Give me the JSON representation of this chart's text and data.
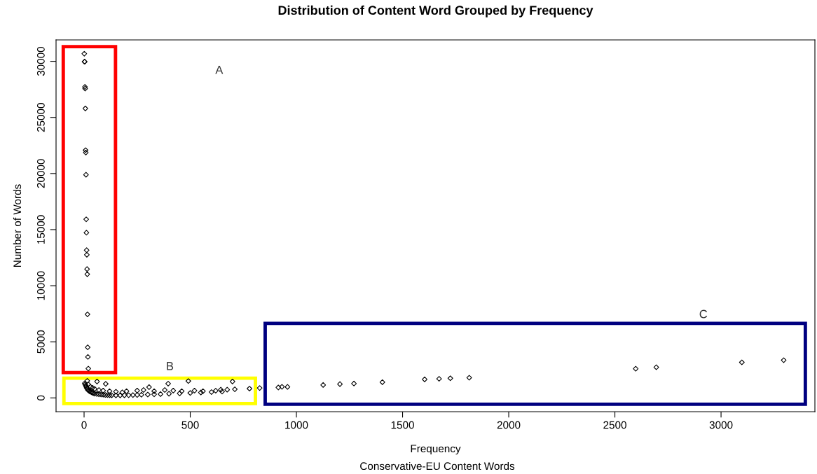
{
  "chart_data": {
    "type": "scatter",
    "title": "Distribution of Content Word Grouped by Frequency",
    "xlabel": "Frequency",
    "ylabel": "Number of Words",
    "annotations": [
      "Conservative-EU Content Words",
      "A",
      "B",
      "C"
    ],
    "x": [
      1,
      2,
      3,
      4,
      5,
      6,
      7,
      8,
      9,
      10,
      11,
      12,
      13,
      14,
      15,
      16,
      17,
      18,
      20,
      15,
      61,
      102,
      396,
      491,
      699,
      306,
      644,
      674,
      710,
      779,
      827,
      915,
      932,
      958,
      1126,
      1205,
      1271,
      1405,
      1604,
      1672,
      1725,
      1814,
      2598,
      2695,
      3098,
      3295,
      3,
      5,
      8,
      10,
      12,
      15,
      18,
      22,
      25,
      30,
      35,
      40,
      45,
      50,
      60,
      70,
      80,
      90,
      100,
      110,
      120,
      130,
      150,
      170,
      190,
      210,
      230,
      250,
      270,
      300,
      330,
      360,
      400,
      450,
      500,
      550,
      600,
      650,
      20,
      30,
      40,
      50,
      70,
      90,
      120,
      150,
      180,
      200,
      250,
      280,
      330,
      380,
      420,
      460,
      520,
      560,
      620
    ],
    "values": [
      30680,
      29970,
      29970,
      27720,
      27570,
      25800,
      22080,
      21870,
      19890,
      15920,
      14730,
      13170,
      12760,
      11480,
      11020,
      7450,
      4510,
      3650,
      2610,
      1520,
      1460,
      1250,
      1270,
      1500,
      1460,
      960,
      730,
      730,
      770,
      830,
      880,
      930,
      990,
      980,
      1150,
      1230,
      1280,
      1400,
      1650,
      1700,
      1750,
      1800,
      2600,
      2730,
      3170,
      3360,
      1300,
      1200,
      1100,
      1000,
      900,
      800,
      700,
      650,
      600,
      550,
      500,
      450,
      420,
      380,
      350,
      320,
      300,
      280,
      260,
      250,
      240,
      230,
      220,
      220,
      230,
      240,
      250,
      260,
      280,
      300,
      320,
      340,
      370,
      400,
      440,
      480,
      520,
      560,
      1200,
      1000,
      900,
      800,
      700,
      650,
      600,
      550,
      500,
      600,
      650,
      700,
      600,
      700,
      650,
      600,
      650,
      600,
      640
    ],
    "color": "#000000",
    "marker": "diamond",
    "grid": false,
    "legend": false,
    "xlim": [
      -132,
      3442
    ],
    "ylim": [
      -1230,
      31910
    ],
    "xticks": [
      0,
      500,
      1000,
      1500,
      2000,
      2500,
      3000
    ],
    "yticks": [
      0,
      5000,
      10000,
      15000,
      20000,
      25000,
      30000
    ]
  }
}
